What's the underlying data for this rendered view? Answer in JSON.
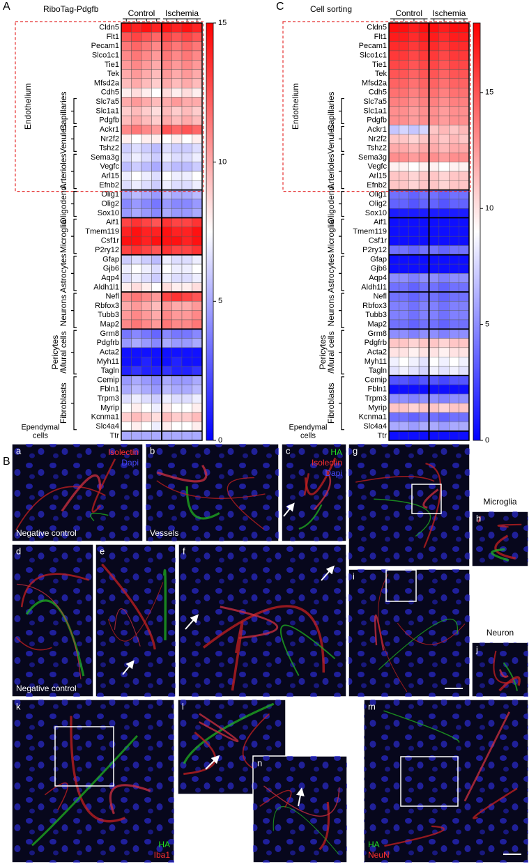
{
  "chart_data": [
    {
      "type": "heatmap",
      "panel": "A",
      "title": "RiboTag-Pdgfb",
      "column_groups": [
        "Control",
        "Ischemia"
      ],
      "rows": [
        "Cldn5",
        "Flt1",
        "Pecam1",
        "Slco1c1",
        "Tie1",
        "Tek",
        "Mfsd2a",
        "Cdh5",
        "Slc7a5",
        "Slc1a1",
        "Pdgfb",
        "Ackr1",
        "Nr2f2",
        "Tshz2",
        "Sema3g",
        "Vegfc",
        "Arl15",
        "Efnb2",
        "Olig1",
        "Olig2",
        "Sox10",
        "Aif1",
        "Tmem119",
        "Csf1r",
        "P2ry12",
        "Gfap",
        "Gjb6",
        "Aqp4",
        "Aldh1l1",
        "Nefl",
        "Rbfox3",
        "Tubb3",
        "Map2",
        "Grm8",
        "Pdgfrb",
        "Acta2",
        "Myh11",
        "Tagln",
        "Cemip",
        "Fbln1",
        "Trpm3",
        "Myrip",
        "Kcnma1",
        "Slc4a4",
        "Ttr"
      ],
      "values": [
        [
          14.5,
          14,
          14.5,
          14,
          14.5,
          14,
          14.5,
          14
        ],
        [
          12.5,
          13,
          12.5,
          12,
          13,
          12.5,
          13,
          12.5
        ],
        [
          11.5,
          12,
          11.5,
          11,
          12,
          11.5,
          12,
          11.5
        ],
        [
          11,
          11.5,
          11,
          10.5,
          11.5,
          11,
          11.5,
          11
        ],
        [
          10.5,
          11,
          10.5,
          10,
          11,
          10.5,
          11,
          10.5
        ],
        [
          10,
          10.5,
          10,
          9.5,
          10.5,
          10,
          10.5,
          10
        ],
        [
          9.5,
          10,
          9.5,
          9,
          10,
          9.5,
          10,
          9.5
        ],
        [
          8,
          8.5,
          8,
          7.5,
          8.5,
          8,
          8.5,
          8
        ],
        [
          10,
          10.5,
          10,
          9.5,
          10,
          10.5,
          10,
          10
        ],
        [
          9,
          9.5,
          9,
          8.5,
          9.5,
          9,
          9.5,
          9
        ],
        [
          9.5,
          10,
          9.5,
          9,
          10,
          9.5,
          10,
          9.5
        ],
        [
          11,
          11.5,
          11,
          10.5,
          12.5,
          12,
          12.5,
          12
        ],
        [
          8,
          7.5,
          8,
          8,
          7.5,
          8,
          7.5,
          8
        ],
        [
          6,
          6.5,
          6,
          5.5,
          6.5,
          6,
          6,
          6.5
        ],
        [
          6.5,
          7,
          6.5,
          6,
          7,
          6.5,
          6.5,
          7
        ],
        [
          5.5,
          6,
          5.5,
          5,
          6,
          5.5,
          5.5,
          6
        ],
        [
          7,
          7.5,
          7,
          6.5,
          7.5,
          7,
          7,
          7.5
        ],
        [
          6.5,
          7,
          6.5,
          6,
          7,
          6.5,
          6.5,
          7
        ],
        [
          5,
          5.5,
          5,
          4.5,
          5.5,
          5,
          5,
          5.5
        ],
        [
          4,
          4.5,
          4,
          3.5,
          4.5,
          4,
          4,
          4.5
        ],
        [
          4.5,
          5,
          4.5,
          4,
          5,
          4.5,
          4.5,
          5
        ],
        [
          13,
          13.5,
          13,
          12.5,
          13.5,
          13,
          13,
          13.5
        ],
        [
          14,
          14.5,
          14,
          14,
          14.5,
          14,
          14,
          14.5
        ],
        [
          14.5,
          14.5,
          14,
          14.5,
          14.5,
          14.5,
          14,
          14.5
        ],
        [
          13,
          13.5,
          13,
          12.5,
          13.5,
          13,
          13,
          13.5
        ],
        [
          6,
          6.5,
          6,
          5.5,
          7,
          6.5,
          6.5,
          7
        ],
        [
          7,
          7.5,
          7,
          6.5,
          7.5,
          7,
          7,
          7.5
        ],
        [
          6.5,
          7,
          6.5,
          6,
          7,
          6.5,
          6.5,
          7
        ],
        [
          8,
          8.5,
          8,
          7.5,
          8.5,
          8,
          8,
          8.5
        ],
        [
          11,
          11.5,
          11,
          10.5,
          13,
          13.5,
          13,
          12.5
        ],
        [
          10,
          10.5,
          10,
          9.5,
          10.5,
          10,
          10,
          10.5
        ],
        [
          10.5,
          11,
          10.5,
          10,
          11,
          10.5,
          10.5,
          11
        ],
        [
          11,
          11.5,
          11,
          10.5,
          11.5,
          11,
          11,
          11.5
        ],
        [
          3.5,
          4,
          3.5,
          3,
          4,
          3.5,
          3.5,
          4
        ],
        [
          4.5,
          5,
          4.5,
          4,
          5,
          4.5,
          4.5,
          5
        ],
        [
          0.5,
          0.5,
          0.5,
          0.5,
          0.5,
          0.5,
          0.5,
          0.5
        ],
        [
          0.5,
          0.5,
          1,
          0.5,
          0.5,
          1,
          0.5,
          0.5
        ],
        [
          1,
          1.5,
          1,
          1,
          1.5,
          1,
          1,
          1.5
        ],
        [
          4.5,
          5,
          4.5,
          4,
          5,
          4.5,
          4.5,
          5
        ],
        [
          5,
          5.5,
          5,
          4.5,
          5.5,
          5,
          5,
          5.5
        ],
        [
          6.5,
          7,
          6.5,
          6,
          7,
          6.5,
          6.5,
          7
        ],
        [
          7.5,
          8,
          7.5,
          7,
          8,
          7.5,
          7.5,
          8
        ],
        [
          9,
          9.5,
          9,
          8.5,
          9.5,
          9,
          9,
          9.5
        ],
        [
          7.5,
          8,
          7.5,
          7,
          8,
          7.5,
          7.5,
          8
        ],
        [
          5,
          5,
          5,
          5,
          5,
          5,
          5,
          5
        ]
      ],
      "zlim": [
        0,
        15
      ],
      "zticks": [
        0,
        5,
        10,
        15
      ],
      "colormap": [
        "#0000ff",
        "#ffffff",
        "#ff0000"
      ],
      "row_groups": [
        {
          "name": [
            "Endothelium"
          ],
          "first_row": 0,
          "last_row": 17,
          "boxed": true,
          "subgroups": [
            {
              "name": [
                "Capillaries"
              ],
              "first_row": 8,
              "last_row": 10
            },
            {
              "name": [
                "Venules"
              ],
              "first_row": 11,
              "last_row": 13
            },
            {
              "name": [
                "Arterioles"
              ],
              "first_row": 14,
              "last_row": 17
            }
          ]
        },
        {
          "name": [
            "Oligodend."
          ],
          "first_row": 18,
          "last_row": 20
        },
        {
          "name": [
            "Microglia"
          ],
          "first_row": 21,
          "last_row": 24
        },
        {
          "name": [
            "Astrocytes"
          ],
          "first_row": 25,
          "last_row": 28
        },
        {
          "name": [
            "Neurons"
          ],
          "first_row": 29,
          "last_row": 32
        },
        {
          "name": [
            "Pericytes",
            "/Mural cells"
          ],
          "first_row": 33,
          "last_row": 37
        },
        {
          "name": [
            "Fibroblasts"
          ],
          "first_row": 38,
          "last_row": 43
        },
        {
          "name": [
            "Ependymal",
            "cells"
          ],
          "first_row": 44,
          "last_row": 44
        }
      ]
    },
    {
      "type": "heatmap",
      "panel": "C",
      "title": "Cell sorting",
      "column_groups": [
        "Control",
        "Ischemia"
      ],
      "rows": [
        "Cldn5",
        "Flt1",
        "Pecam1",
        "Slco1c1",
        "Tie1",
        "Tek",
        "Mfsd2a",
        "Cdh5",
        "Slc7a5",
        "Slc1a1",
        "Pdgfb",
        "Ackr1",
        "Nr2f2",
        "Tshz2",
        "Sema3g",
        "Vegfc",
        "Arl15",
        "Efnb2",
        "Olig1",
        "Olig2",
        "Sox10",
        "Aif1",
        "Tmem119",
        "Csf1r",
        "P2ry12",
        "Gfap",
        "Gjb6",
        "Aqp4",
        "Aldh1l1",
        "Nefl",
        "Rbfox3",
        "Tubb3",
        "Map2",
        "Grm8",
        "Pdgfrb",
        "Acta2",
        "Myh11",
        "Tagln",
        "Cemip",
        "Fbln1",
        "Trpm3",
        "Myrip",
        "Kcnma1",
        "Slc4a4",
        "Ttr"
      ],
      "values": [
        [
          17.5,
          17.5,
          17,
          17.5,
          17.5,
          17,
          17.5,
          17.5
        ],
        [
          17,
          17,
          16.5,
          17,
          17,
          16.5,
          17,
          17
        ],
        [
          16.5,
          16.5,
          16,
          16.5,
          16.5,
          16,
          16.5,
          16.5
        ],
        [
          16,
          16,
          15.5,
          16,
          16,
          15.5,
          16,
          16
        ],
        [
          15.5,
          15.5,
          15,
          15.5,
          15.5,
          15,
          15.5,
          15.5
        ],
        [
          15,
          15,
          14.5,
          15,
          15,
          14.5,
          15,
          15
        ],
        [
          14.5,
          14.5,
          14,
          14.5,
          14.5,
          14,
          14.5,
          14.5
        ],
        [
          14,
          14,
          13.5,
          14,
          14,
          13.5,
          14,
          14
        ],
        [
          13.5,
          13.5,
          13,
          13.5,
          13.5,
          13,
          13.5,
          13.5
        ],
        [
          13,
          13,
          12.5,
          13,
          13,
          12.5,
          13,
          13
        ],
        [
          13,
          13,
          12.5,
          13,
          13,
          12.5,
          13,
          13
        ],
        [
          7,
          7.5,
          7,
          7.5,
          11,
          11.5,
          11,
          11.5
        ],
        [
          11,
          11,
          10.5,
          11,
          11.5,
          11,
          11.5,
          11
        ],
        [
          12,
          12,
          11.5,
          12,
          12,
          11.5,
          12,
          12
        ],
        [
          13,
          13,
          12.5,
          13,
          13,
          12.5,
          13,
          13
        ],
        [
          9.5,
          9.5,
          9,
          9.5,
          9.5,
          9,
          9.5,
          9.5
        ],
        [
          11,
          11,
          10.5,
          11,
          11,
          10.5,
          11,
          11
        ],
        [
          11,
          11,
          10.5,
          11,
          11,
          10.5,
          11,
          11
        ],
        [
          4,
          4,
          3.5,
          4,
          4,
          3.5,
          4,
          4
        ],
        [
          3.5,
          3.5,
          3,
          3.5,
          3.5,
          3,
          3.5,
          3.5
        ],
        [
          1,
          1,
          1,
          1,
          1,
          1,
          1,
          1
        ],
        [
          0.5,
          0.5,
          0.5,
          0.5,
          0.5,
          0.5,
          0.5,
          0.5
        ],
        [
          0.5,
          0.5,
          0.5,
          0.5,
          0.5,
          0.5,
          0.5,
          0.5
        ],
        [
          0.5,
          0.5,
          0.5,
          0.5,
          0.5,
          0.5,
          0.5,
          0.5
        ],
        [
          4,
          4,
          3.5,
          4,
          4,
          3.5,
          4,
          4
        ],
        [
          0.5,
          0.5,
          0.5,
          0.5,
          0.5,
          0.5,
          0.5,
          0.5
        ],
        [
          0.5,
          0.5,
          0.5,
          0.5,
          0.5,
          0.5,
          0.5,
          0.5
        ],
        [
          5,
          5,
          4.5,
          5,
          5,
          4.5,
          5,
          5
        ],
        [
          4,
          4,
          3.5,
          4,
          4,
          3.5,
          4,
          4
        ],
        [
          4,
          4,
          3.5,
          4,
          4,
          3.5,
          4,
          4
        ],
        [
          4.5,
          4.5,
          4,
          4.5,
          4.5,
          4,
          4.5,
          4.5
        ],
        [
          4.5,
          4.5,
          4,
          4.5,
          4.5,
          4,
          4.5,
          4.5
        ],
        [
          4,
          4,
          3.5,
          4,
          4,
          3.5,
          4,
          4
        ],
        [
          5,
          5,
          4.5,
          5,
          5,
          4.5,
          5,
          5
        ],
        [
          11,
          11,
          10.5,
          11,
          11,
          10.5,
          11,
          11
        ],
        [
          10,
          10,
          9.5,
          10,
          10,
          9.5,
          10,
          10
        ],
        [
          8.5,
          9,
          8.5,
          8,
          9,
          8.5,
          9,
          8.5
        ],
        [
          8,
          8.5,
          8,
          7.5,
          8.5,
          8,
          8.5,
          8
        ],
        [
          3,
          3,
          2.5,
          3,
          3,
          2.5,
          3,
          3
        ],
        [
          0.5,
          0.5,
          0.5,
          0.5,
          0.5,
          0.5,
          0.5,
          0.5
        ],
        [
          5,
          5,
          4.5,
          5,
          5,
          4.5,
          5,
          5
        ],
        [
          11,
          11,
          10.5,
          11,
          11,
          10.5,
          11,
          11
        ],
        [
          4,
          4,
          3.5,
          4,
          4,
          3.5,
          4,
          4
        ],
        [
          6,
          6,
          5.5,
          6,
          6,
          5.5,
          6,
          6
        ],
        [
          0.5,
          0.5,
          0.5,
          0.5,
          0.5,
          0.5,
          0.5,
          0.5
        ]
      ],
      "zlim": [
        0,
        18
      ],
      "zticks": [
        0,
        5,
        10,
        15
      ],
      "colormap": [
        "#0000ff",
        "#ffffff",
        "#ff0000"
      ],
      "row_groups": [
        {
          "name": [
            "Endothelium"
          ],
          "first_row": 0,
          "last_row": 17,
          "boxed": true,
          "subgroups": [
            {
              "name": [
                "Capillaries"
              ],
              "first_row": 8,
              "last_row": 10
            },
            {
              "name": [
                "Venules"
              ],
              "first_row": 11,
              "last_row": 13
            },
            {
              "name": [
                "Arterioles"
              ],
              "first_row": 14,
              "last_row": 17
            }
          ]
        },
        {
          "name": [
            "Oligodend."
          ],
          "first_row": 18,
          "last_row": 20
        },
        {
          "name": [
            "Microglia"
          ],
          "first_row": 21,
          "last_row": 24
        },
        {
          "name": [
            "Astrocytes"
          ],
          "first_row": 25,
          "last_row": 28
        },
        {
          "name": [
            "Neurons"
          ],
          "first_row": 29,
          "last_row": 32
        },
        {
          "name": [
            "Pericytes",
            "/Mural cells"
          ],
          "first_row": 33,
          "last_row": 37
        },
        {
          "name": [
            "Fibroblasts"
          ],
          "first_row": 38,
          "last_row": 43
        },
        {
          "name": [
            "Ependymal",
            "cells"
          ],
          "first_row": 44,
          "last_row": 44
        }
      ]
    }
  ],
  "panel_b": {
    "letter": "B",
    "panels": [
      {
        "letter": "a",
        "caption": "Negative control",
        "channel_corner": "top-right",
        "channels": [
          {
            "name": "Isolectin",
            "color": "#ff3030"
          },
          {
            "name": "Dapi",
            "color": "#4a4aff"
          }
        ]
      },
      {
        "letter": "b",
        "caption": "Vessels"
      },
      {
        "letter": "c",
        "channel_corner": "top-right",
        "channels": [
          {
            "name": "HA",
            "color": "#22dd22"
          },
          {
            "name": "Isolectin",
            "color": "#ff3030"
          },
          {
            "name": "Dapi",
            "color": "#4a4aff"
          }
        ]
      },
      {
        "letter": "d",
        "caption": "Negative control"
      },
      {
        "letter": "e"
      },
      {
        "letter": "f"
      },
      {
        "letter": "g"
      },
      {
        "letter": "h",
        "heading": "Microglia"
      },
      {
        "letter": "i"
      },
      {
        "letter": "j",
        "heading": "Neuron"
      },
      {
        "letter": "k",
        "channel_corner": "bottom-right",
        "channels": [
          {
            "name": "HA",
            "color": "#22dd22"
          },
          {
            "name": "Iba1",
            "color": "#ff3030"
          }
        ]
      },
      {
        "letter": "l"
      },
      {
        "letter": "m",
        "channel_corner": "bottom-left",
        "channels": [
          {
            "name": "HA",
            "color": "#22dd22"
          },
          {
            "name": "NeuN",
            "color": "#ff3030"
          }
        ]
      },
      {
        "letter": "n"
      }
    ]
  }
}
